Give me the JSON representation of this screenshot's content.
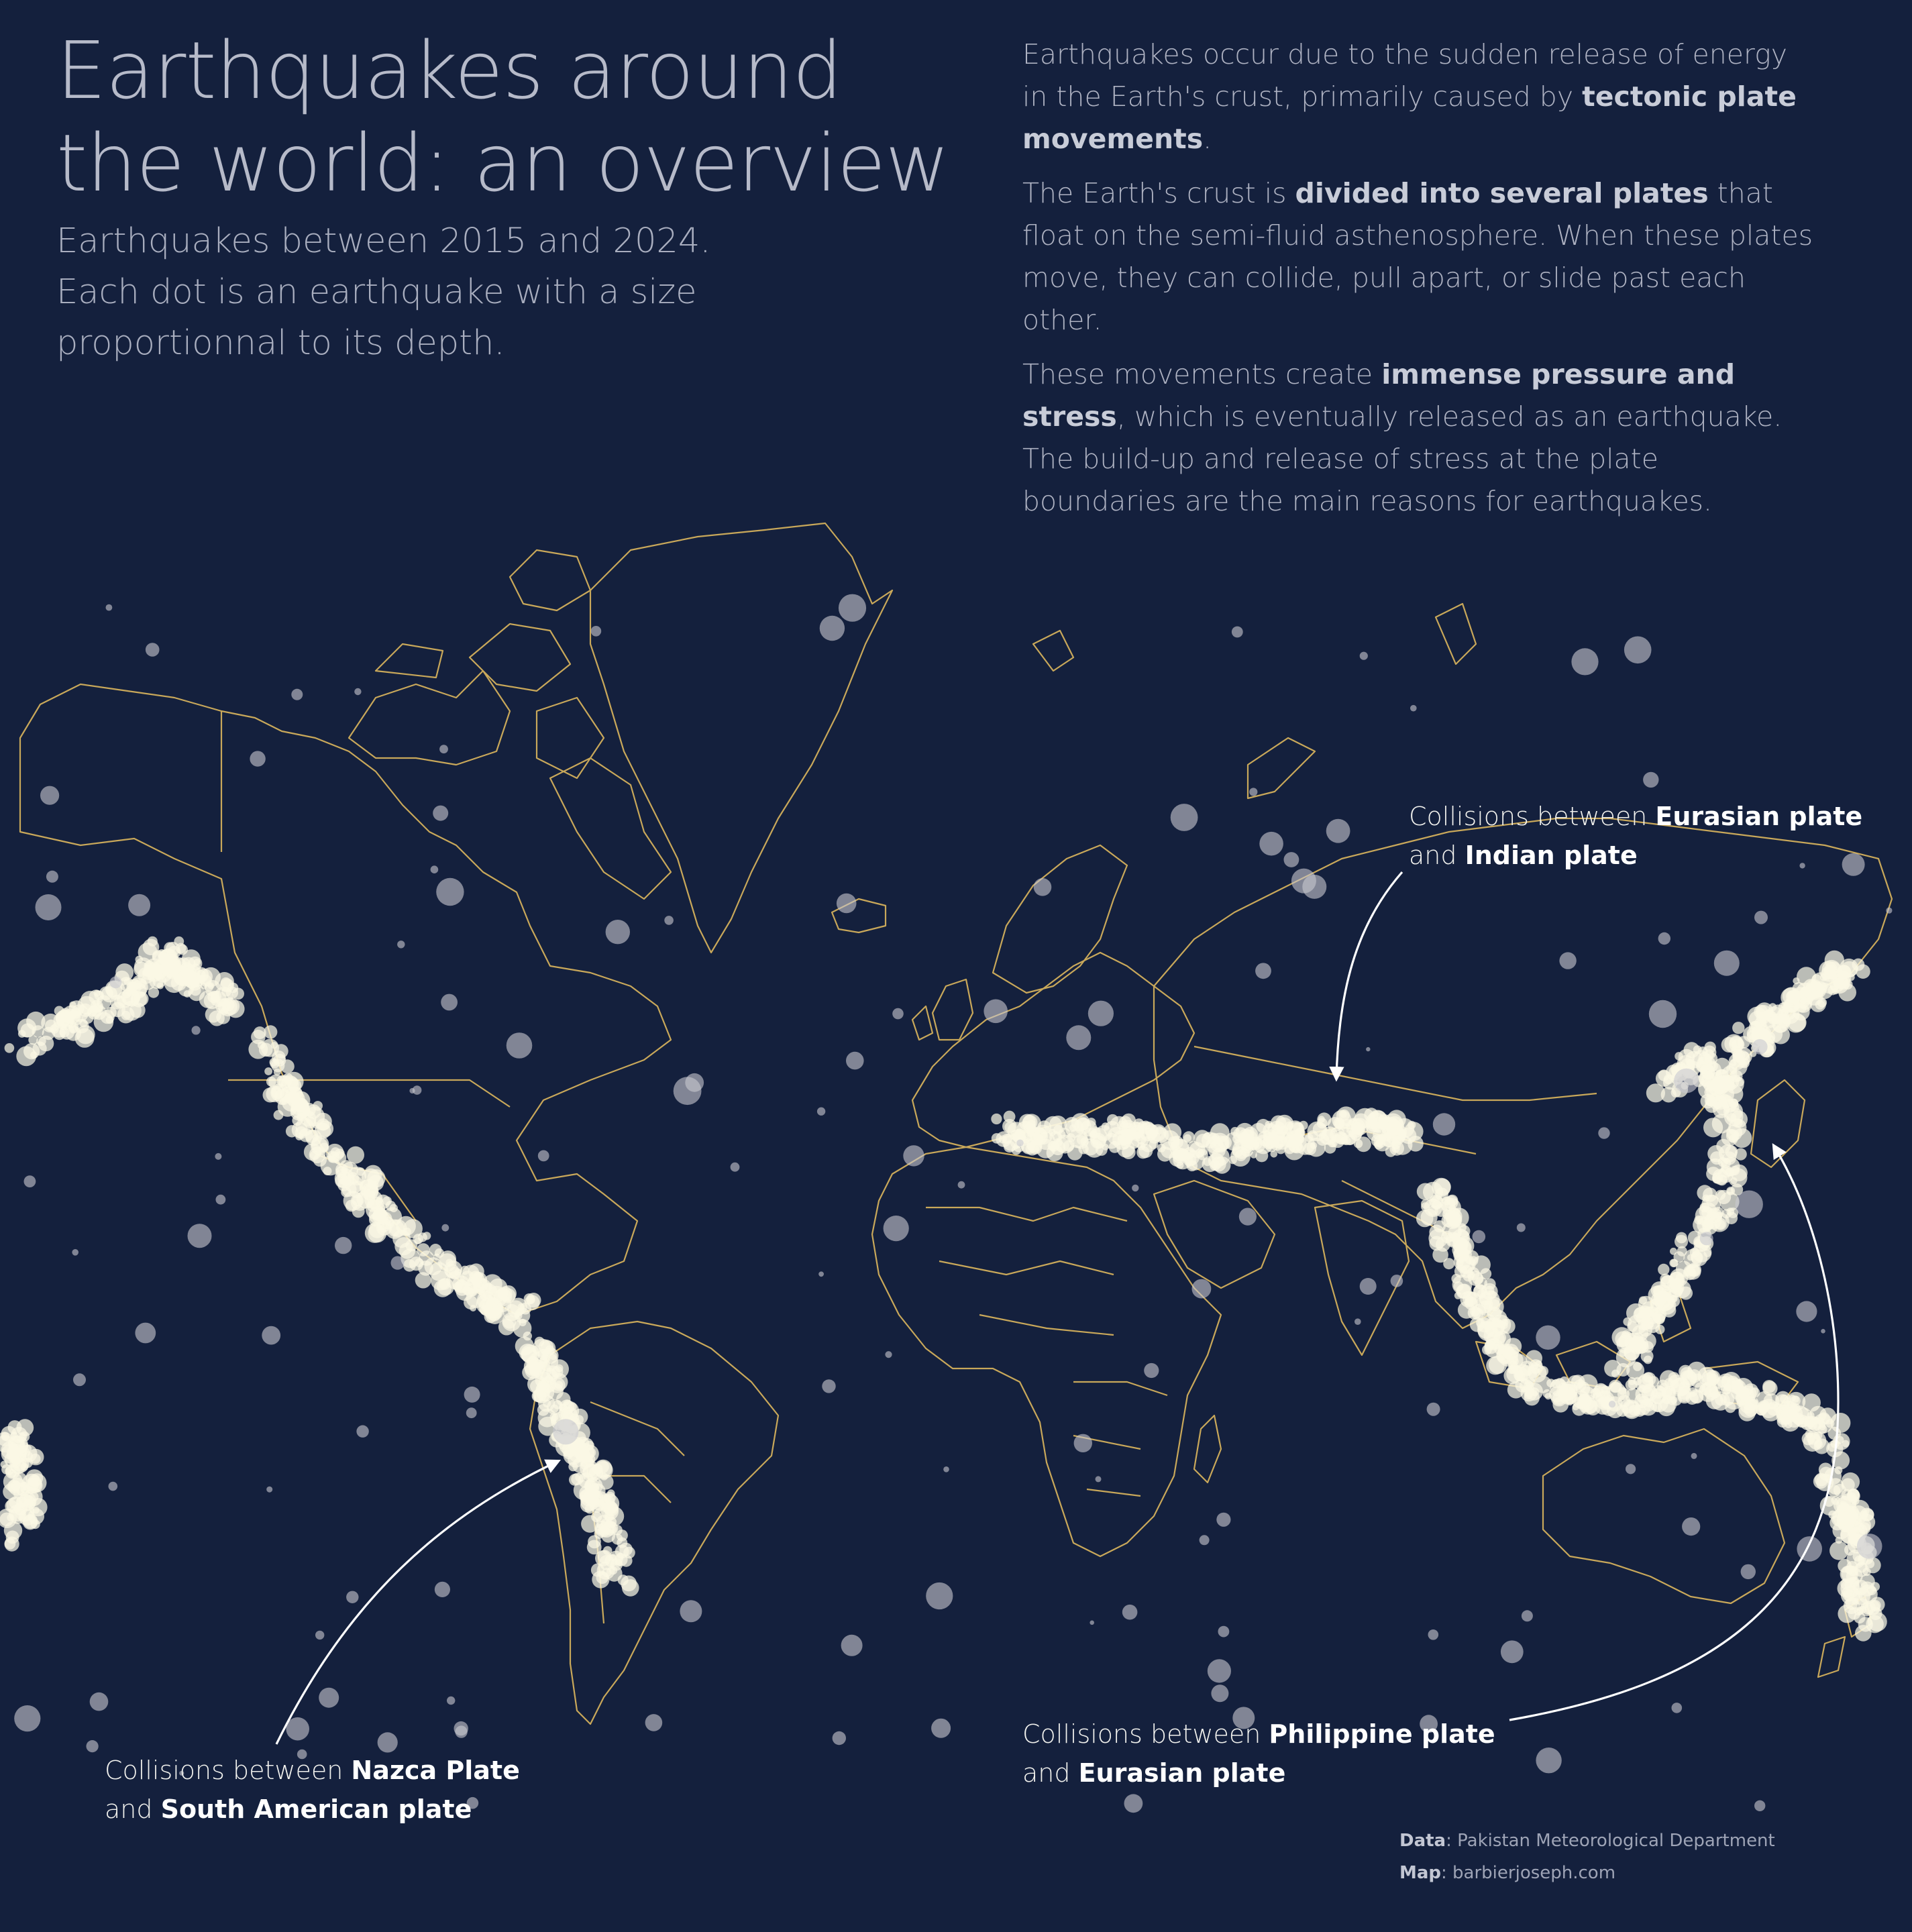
{
  "title_line1": "Earthquakes around",
  "title_line2": "the world: an overview",
  "subtitle": {
    "line1": "Earthquakes between 2015 and 2024.",
    "line2": "Each dot is an earthquake with a size",
    "line3": "proportionnal to its depth."
  },
  "intro": {
    "p1_a": "Earthquakes occur due to the sudden release of energy in the Earth's crust, primarily caused by ",
    "p1_b": "tectonic plate movements",
    "p1_c": ".",
    "p2_a": "The Earth's crust is ",
    "p2_b": "divided into several plates",
    "p2_c": " that float on the semi-fluid asthenosphere. When these plates move, they can collide, pull apart, or slide past each other.",
    "p3_a": "These movements create ",
    "p3_b": "immense pressure and stress",
    "p3_c": ", which is eventually released as an earthquake. The build-up and release of stress at the plate boundaries are the main reasons for earthquakes."
  },
  "annotations": {
    "eurasian_indian": {
      "prefix": "Collisions between ",
      "plate1": "Eurasian plate",
      "mid": "and ",
      "plate2": "Indian plate"
    },
    "nazca": {
      "prefix": "Collisions between ",
      "plate1": "Nazca Plate",
      "mid": "and ",
      "plate2": "South American plate"
    },
    "philippine": {
      "prefix": "Collisions between ",
      "plate1": "Philippine plate",
      "mid": "and ",
      "plate2": "Eurasian plate"
    }
  },
  "credits": {
    "data_label": "Data",
    "data_value": ": Pakistan Meteorological Department",
    "map_label": "Map",
    "map_value": ": barbierjoseph.com"
  },
  "colors": {
    "background": "#14203d",
    "coastline": "#c9a85a",
    "quake_dot": "#fbf8e4",
    "deep_quake": "#c9cad0"
  }
}
